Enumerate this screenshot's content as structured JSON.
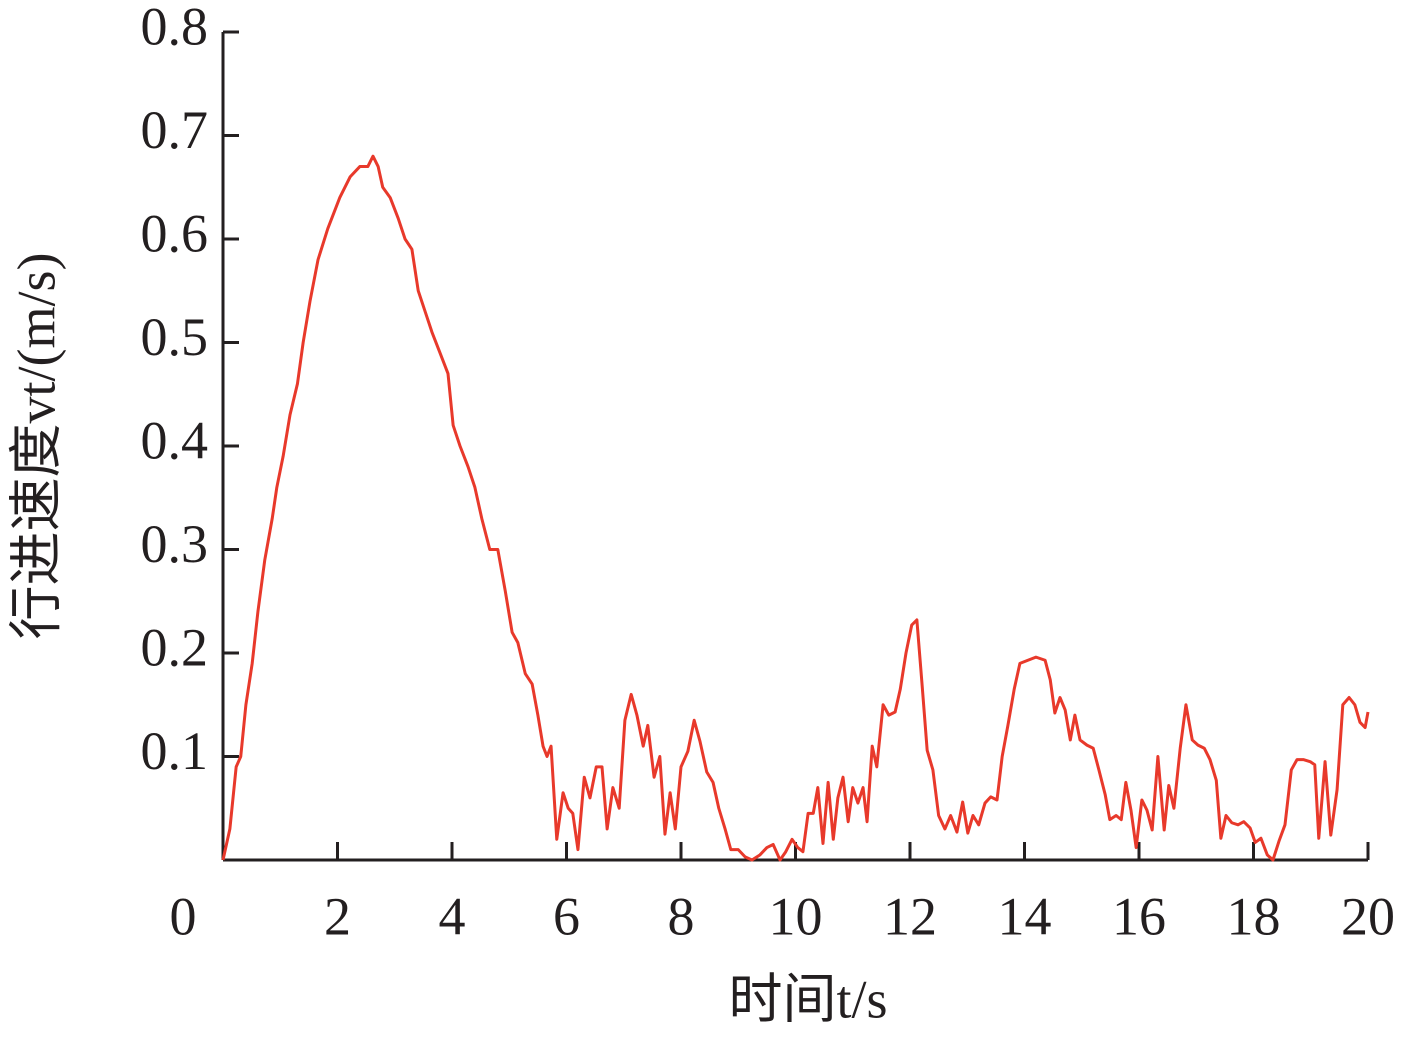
{
  "chart_data": {
    "type": "line",
    "xlabel": "时间t/s",
    "ylabel": "行进速度vt/(m/s)",
    "xlim": [
      0,
      20
    ],
    "xticks": [
      0,
      2,
      4,
      6,
      8,
      10,
      12,
      14,
      16,
      18,
      20
    ],
    "ylim": [
      0,
      0.8
    ],
    "yticks": [
      0.1,
      0.2,
      0.3,
      0.4,
      0.5,
      0.6,
      0.7,
      0.8
    ],
    "grid": false,
    "series": [
      {
        "color": "#e8392b",
        "x": [
          0,
          0.12,
          0.23,
          0.31,
          0.4,
          0.51,
          0.61,
          0.73,
          0.86,
          0.94,
          1.05,
          1.17,
          1.3,
          1.4,
          1.52,
          1.66,
          1.83,
          2.04,
          2.22,
          2.39,
          2.53,
          2.62,
          2.71,
          2.79,
          2.92,
          3.06,
          3.18,
          3.3,
          3.41,
          3.53,
          3.65,
          3.79,
          3.93,
          4.02,
          4.14,
          4.28,
          4.4,
          4.52,
          4.66,
          4.8,
          4.93,
          5.05,
          5.15,
          5.28,
          5.4,
          5.5,
          5.59,
          5.66,
          5.73,
          5.83,
          5.94,
          6.03,
          6.11,
          6.2,
          6.31,
          6.41,
          6.52,
          6.62,
          6.71,
          6.81,
          6.92,
          7.02,
          7.13,
          7.23,
          7.34,
          7.42,
          7.53,
          7.63,
          7.72,
          7.81,
          7.9,
          8.0,
          8.12,
          8.23,
          8.33,
          8.45,
          8.56,
          8.66,
          8.77,
          8.87,
          9.0,
          9.12,
          9.24,
          9.38,
          9.5,
          9.61,
          9.73,
          9.83,
          9.94,
          10.04,
          10.13,
          10.22,
          10.31,
          10.39,
          10.48,
          10.57,
          10.66,
          10.74,
          10.83,
          10.92,
          11.0,
          11.09,
          11.18,
          11.25,
          11.34,
          11.42,
          11.53,
          11.63,
          11.74,
          11.83,
          11.93,
          12.03,
          12.12,
          12.21,
          12.3,
          12.4,
          12.5,
          12.61,
          12.71,
          12.82,
          12.92,
          13.01,
          13.1,
          13.2,
          13.31,
          13.41,
          13.52,
          13.61,
          13.71,
          13.82,
          13.92,
          14.06,
          14.2,
          14.36,
          14.45,
          14.53,
          14.62,
          14.71,
          14.8,
          14.88,
          14.97,
          15.09,
          15.2,
          15.3,
          15.41,
          15.49,
          15.6,
          15.69,
          15.77,
          15.86,
          15.95,
          16.05,
          16.14,
          16.23,
          16.33,
          16.44,
          16.52,
          16.61,
          16.72,
          16.82,
          16.93,
          17.03,
          17.14,
          17.24,
          17.35,
          17.43,
          17.52,
          17.62,
          17.73,
          17.83,
          17.94,
          18.03,
          18.13,
          18.24,
          18.34,
          18.45,
          18.55,
          18.66,
          18.76,
          18.87,
          18.99,
          19.07,
          19.14,
          19.25,
          19.35,
          19.46,
          19.56,
          19.67,
          19.77,
          19.86,
          19.95,
          20.0
        ],
        "values": [
          0,
          0.03,
          0.09,
          0.1,
          0.15,
          0.19,
          0.24,
          0.29,
          0.33,
          0.36,
          0.39,
          0.43,
          0.46,
          0.5,
          0.54,
          0.58,
          0.61,
          0.64,
          0.66,
          0.67,
          0.67,
          0.68,
          0.67,
          0.65,
          0.64,
          0.62,
          0.6,
          0.59,
          0.55,
          0.53,
          0.51,
          0.49,
          0.47,
          0.42,
          0.4,
          0.38,
          0.36,
          0.33,
          0.3,
          0.3,
          0.26,
          0.22,
          0.21,
          0.18,
          0.17,
          0.14,
          0.11,
          0.1,
          0.11,
          0.02,
          0.065,
          0.05,
          0.045,
          0.01,
          0.08,
          0.06,
          0.09,
          0.09,
          0.03,
          0.07,
          0.05,
          0.135,
          0.16,
          0.14,
          0.11,
          0.13,
          0.08,
          0.1,
          0.025,
          0.065,
          0.03,
          0.09,
          0.105,
          0.135,
          0.115,
          0.085,
          0.075,
          0.05,
          0.03,
          0.01,
          0.01,
          0.003,
          0,
          0.005,
          0.012,
          0.015,
          0,
          0.008,
          0.02,
          0.012,
          0.008,
          0.045,
          0.045,
          0.07,
          0.016,
          0.075,
          0.02,
          0.06,
          0.08,
          0.037,
          0.07,
          0.055,
          0.07,
          0.037,
          0.11,
          0.09,
          0.15,
          0.14,
          0.143,
          0.165,
          0.2,
          0.227,
          0.232,
          0.17,
          0.106,
          0.087,
          0.043,
          0.03,
          0.043,
          0.027,
          0.056,
          0.026,
          0.043,
          0.034,
          0.055,
          0.061,
          0.058,
          0.1,
          0.13,
          0.165,
          0.19,
          0.193,
          0.196,
          0.193,
          0.174,
          0.142,
          0.157,
          0.145,
          0.116,
          0.14,
          0.116,
          0.111,
          0.108,
          0.087,
          0.063,
          0.039,
          0.043,
          0.039,
          0.075,
          0.048,
          0.012,
          0.058,
          0.048,
          0.029,
          0.1,
          0.029,
          0.072,
          0.05,
          0.108,
          0.15,
          0.116,
          0.111,
          0.108,
          0.097,
          0.077,
          0.021,
          0.043,
          0.036,
          0.034,
          0.037,
          0.031,
          0.017,
          0.021,
          0.005,
          0,
          0.019,
          0.034,
          0.087,
          0.097,
          0.097,
          0.095,
          0.092,
          0.021,
          0.095,
          0.024,
          0.068,
          0.15,
          0.157,
          0.15,
          0.133,
          0.128,
          0.143
        ]
      }
    ]
  }
}
